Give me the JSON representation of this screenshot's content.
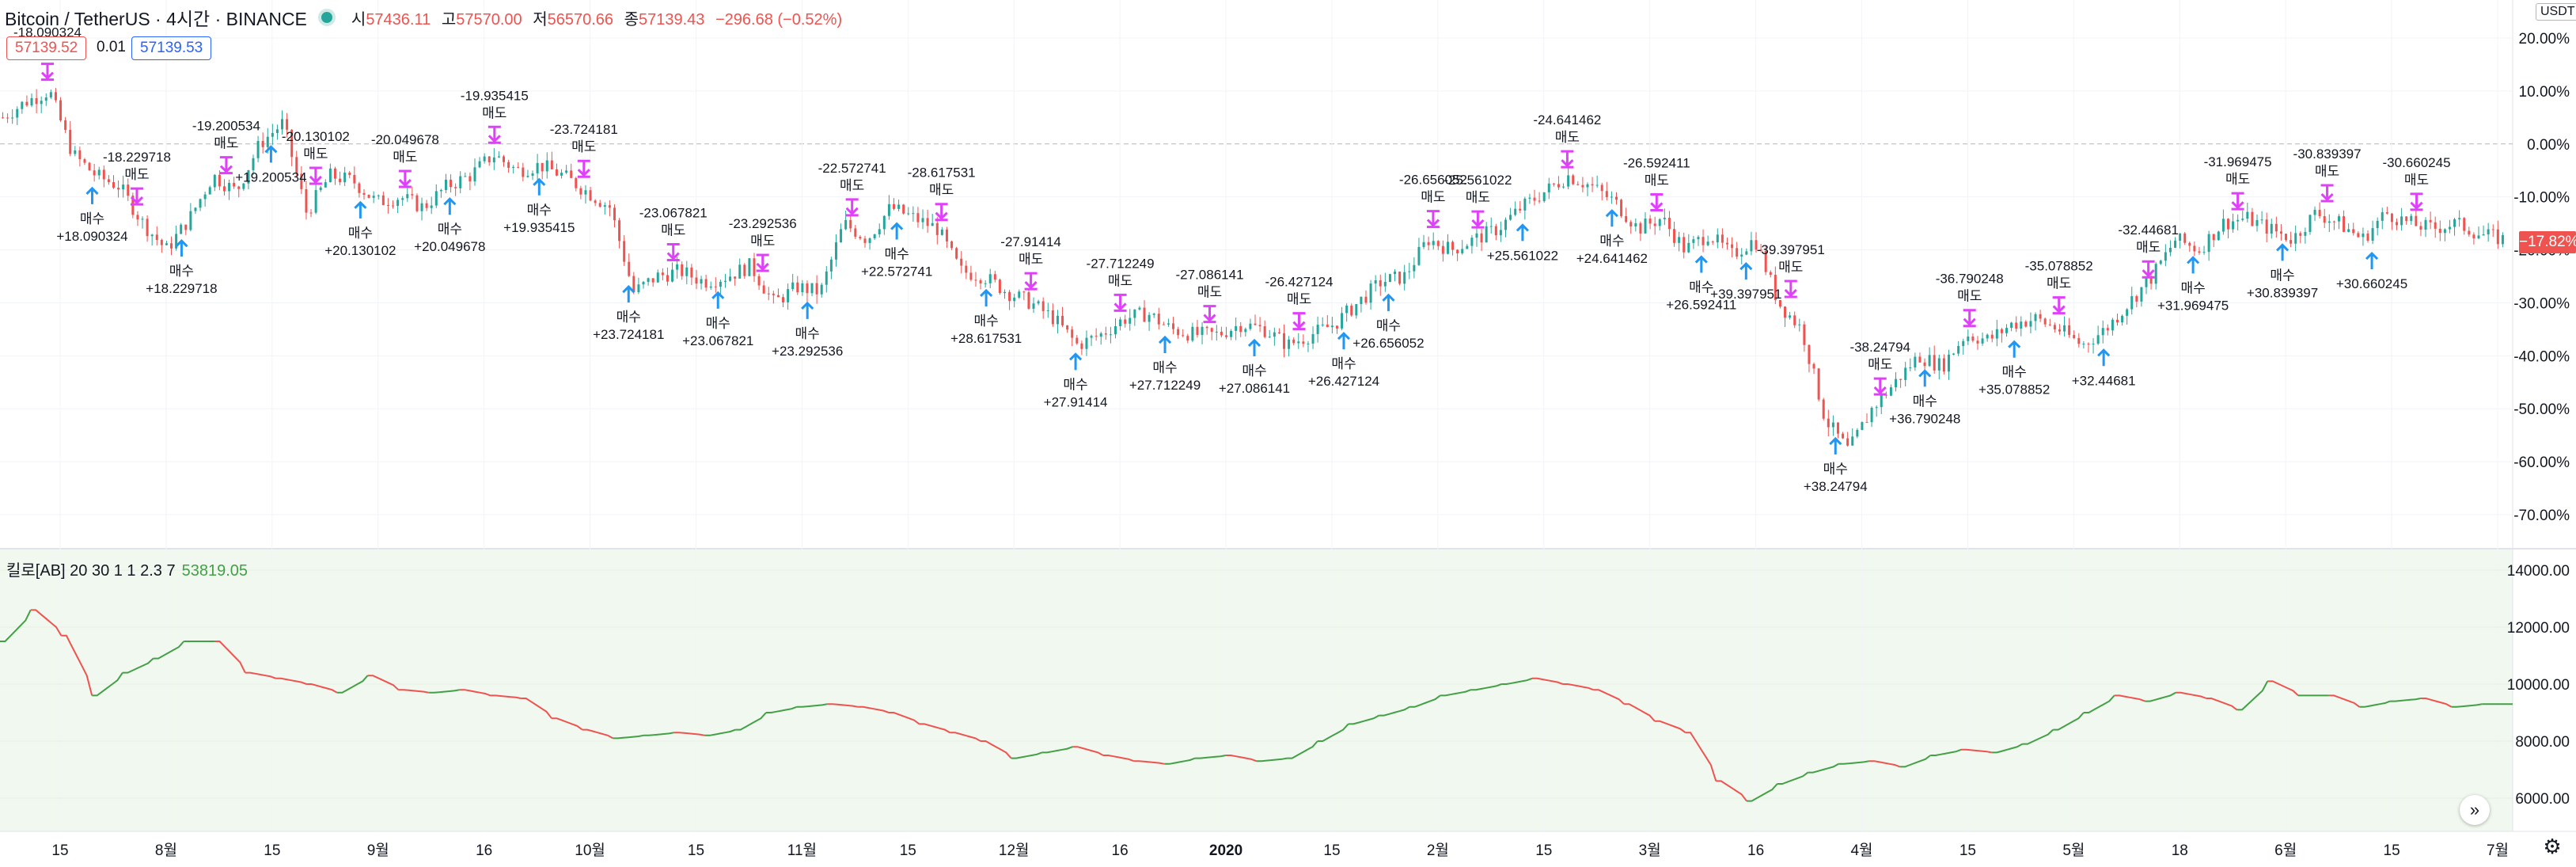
{
  "header": {
    "symbol": "Bitcoin / TetherUS · 4시간 · BINANCE",
    "o_label": "시",
    "o_value": "57436.11",
    "h_label": "고",
    "h_value": "57570.00",
    "l_label": "저",
    "l_value": "56570.66",
    "c_label": "종",
    "c_value": "57139.43",
    "change": "−296.68 (−0.52%)"
  },
  "trade_panel": {
    "sell_price": "57139.52",
    "spread": "0.01",
    "buy_price": "57139.53"
  },
  "currency": "USDT",
  "last_value_tag": "−17.82%",
  "indicator": {
    "label": "킬로[AB] 20 30 1 1 2.3 7",
    "value": "53819.05"
  },
  "colors": {
    "up": "#26a69a",
    "down": "#ef5350",
    "buy": "#2196f3",
    "sell": "#e040fb",
    "equity_up": "#43a047",
    "equity_down": "#ef5350"
  },
  "icons": {
    "scroll": "scroll-right-icon",
    "settings": "gear-icon"
  },
  "chart_data": [
    {
      "type": "line",
      "title": "",
      "description_series": "price candles, percent scale",
      "x_labels": [
        "15",
        "8월",
        "15",
        "9월",
        "16",
        "10월",
        "15",
        "11월",
        "15",
        "12월",
        "16",
        "2020",
        "15",
        "2월",
        "15",
        "3월",
        "16",
        "4월",
        "15",
        "5월",
        "18",
        "6월",
        "15",
        "7월"
      ],
      "y_ticks": [
        "20.00%",
        "10.00%",
        "0.00%",
        "-10.00%",
        "-20.00%",
        "-30.00%",
        "-40.00%",
        "-50.00%",
        "-60.00%",
        "-70.00%"
      ],
      "ylim": [
        -70,
        20
      ],
      "series": [
        {
          "values": [
            5,
            8,
            10,
            -2,
            -6,
            -8,
            -15,
            -20,
            -14,
            -6,
            -9,
            0,
            4,
            -13,
            -6,
            -7,
            -11,
            -10,
            -12,
            -8,
            -6,
            -2,
            -5,
            -4,
            -6,
            -9,
            -12,
            -28,
            -25,
            -24,
            -26,
            -25,
            -23,
            -30,
            -27,
            -28,
            -15,
            -18,
            -12,
            -14,
            -16,
            -24,
            -25,
            -28,
            -30,
            -33,
            -38,
            -36,
            -33,
            -32,
            -35,
            -36,
            -36,
            -34,
            -35,
            -38,
            -36,
            -34,
            -30,
            -26,
            -25,
            -18,
            -20,
            -18,
            -16,
            -12,
            -9,
            -6,
            -8,
            -11,
            -16,
            -14,
            -20,
            -17,
            -21,
            -18,
            -30,
            -35,
            -52,
            -58,
            -50,
            -45,
            -40,
            -42,
            -36,
            -37,
            -34,
            -33,
            -35,
            -38,
            -35,
            -30,
            -25,
            -18,
            -20,
            -15,
            -14,
            -16,
            -18,
            -13,
            -15,
            -18,
            -13,
            -15,
            -16,
            -15,
            -17,
            -18
          ]
        }
      ],
      "signals": [
        {
          "kind": "sell",
          "label": "-18.090324\n매도"
        },
        {
          "kind": "buy",
          "label": "매수\n+18.090324"
        },
        {
          "kind": "sell",
          "label": "-18.229718\n매도"
        },
        {
          "kind": "buy",
          "label": "매수\n+18.229718"
        },
        {
          "kind": "sell",
          "label": "-19.200534\n매도"
        },
        {
          "kind": "buy",
          "label": "+19.200534"
        },
        {
          "kind": "sell",
          "label": "-20.130102\n매도"
        },
        {
          "kind": "buy",
          "label": "매수\n+20.130102"
        },
        {
          "kind": "sell",
          "label": "-20.049678\n매도"
        },
        {
          "kind": "buy",
          "label": "매수\n+20.049678"
        },
        {
          "kind": "sell",
          "label": "-19.935415\n매도"
        },
        {
          "kind": "buy",
          "label": "매수\n+19.935415"
        },
        {
          "kind": "sell",
          "label": "-23.724181\n매도"
        },
        {
          "kind": "buy",
          "label": "매수\n+23.724181"
        },
        {
          "kind": "sell",
          "label": "-23.067821\n매도"
        },
        {
          "kind": "buy",
          "label": "매수\n+23.067821"
        },
        {
          "kind": "sell",
          "label": "-23.292536\n매도"
        },
        {
          "kind": "buy",
          "label": "매수\n+23.292536"
        },
        {
          "kind": "sell",
          "label": "-22.572741\n매도"
        },
        {
          "kind": "buy",
          "label": "매수\n+22.572741"
        },
        {
          "kind": "sell",
          "label": "-28.617531\n매도"
        },
        {
          "kind": "buy",
          "label": "매수\n+28.617531"
        },
        {
          "kind": "sell",
          "label": "-27.91414\n매도"
        },
        {
          "kind": "buy",
          "label": "매수\n+27.91414"
        },
        {
          "kind": "sell",
          "label": "-27.712249\n매도"
        },
        {
          "kind": "buy",
          "label": "매수\n+27.712249"
        },
        {
          "kind": "sell",
          "label": "-27.086141\n매도"
        },
        {
          "kind": "buy",
          "label": "매수\n+27.086141"
        },
        {
          "kind": "sell",
          "label": "-26.427124\n매도"
        },
        {
          "kind": "buy",
          "label": "매수\n+26.427124"
        },
        {
          "kind": "buy",
          "label": "매수\n+26.656052"
        },
        {
          "kind": "sell",
          "label": "-26.656052\n매도"
        },
        {
          "kind": "sell",
          "label": "-25.561022\n매도"
        },
        {
          "kind": "buy",
          "label": "+25.561022"
        },
        {
          "kind": "sell",
          "label": "-24.641462\n매도"
        },
        {
          "kind": "buy",
          "label": "매수\n+24.641462"
        },
        {
          "kind": "sell",
          "label": "-26.592411\n매도"
        },
        {
          "kind": "buy",
          "label": "매수\n+26.592411"
        },
        {
          "kind": "buy",
          "label": "+39.397951"
        },
        {
          "kind": "sell",
          "label": "-39.397951\n매도"
        },
        {
          "kind": "buy",
          "label": "매수\n+38.24794"
        },
        {
          "kind": "sell",
          "label": "-38.24794\n매도"
        },
        {
          "kind": "buy",
          "label": "매수\n+36.790248"
        },
        {
          "kind": "sell",
          "label": "-36.790248\n매도"
        },
        {
          "kind": "buy",
          "label": "매수\n+35.078852"
        },
        {
          "kind": "sell",
          "label": "-35.078852\n매도"
        },
        {
          "kind": "buy",
          "label": "+32.44681"
        },
        {
          "kind": "sell",
          "label": "-32.44681\n매도"
        },
        {
          "kind": "buy",
          "label": "매수\n+31.969475"
        },
        {
          "kind": "sell",
          "label": "-31.969475\n매도"
        },
        {
          "kind": "buy",
          "label": "매수\n+30.839397"
        },
        {
          "kind": "sell",
          "label": "-30.839397\n매도"
        },
        {
          "kind": "buy",
          "label": "+30.660245"
        },
        {
          "kind": "sell",
          "label": "-30.660245\n매도"
        }
      ]
    },
    {
      "type": "line",
      "title": "",
      "y_ticks": [
        "14000.00",
        "12000.00",
        "10000.00",
        "8000.00",
        "6000.00"
      ],
      "ylim": [
        5000,
        14500
      ],
      "series": [
        {
          "values": [
            11500,
            12600,
            11700,
            9600,
            10400,
            10900,
            11500,
            11500,
            10400,
            10200,
            10000,
            9700,
            10300,
            9800,
            9700,
            9800,
            9600,
            9500,
            8800,
            8400,
            8100,
            8200,
            8300,
            8200,
            8400,
            9000,
            9200,
            9300,
            9200,
            9000,
            8600,
            8300,
            8000,
            7400,
            7600,
            7800,
            7500,
            7300,
            7200,
            7400,
            7500,
            7300,
            7400,
            8000,
            8600,
            8900,
            9200,
            9600,
            9800,
            10000,
            10200,
            10000,
            9800,
            9300,
            8700,
            8300,
            6600,
            5900,
            6500,
            6900,
            7200,
            7300,
            7100,
            7500,
            7700,
            7600,
            7900,
            8400,
            9000,
            9600,
            9400,
            9700,
            9500,
            9100,
            10100,
            9600,
            9600,
            9200,
            9400,
            9500,
            9200,
            9300
          ]
        }
      ]
    }
  ]
}
